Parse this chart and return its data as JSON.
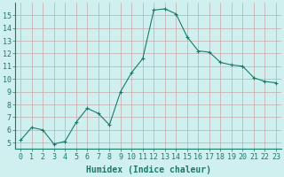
{
  "x": [
    0,
    1,
    2,
    3,
    4,
    5,
    6,
    7,
    8,
    9,
    10,
    11,
    12,
    13,
    14,
    15,
    16,
    17,
    18,
    19,
    20,
    21,
    22,
    23
  ],
  "y": [
    5.2,
    6.2,
    6.0,
    4.9,
    5.1,
    6.6,
    7.7,
    7.3,
    6.4,
    9.0,
    10.5,
    11.6,
    15.4,
    15.5,
    15.1,
    13.3,
    12.2,
    12.1,
    11.3,
    11.1,
    11.0,
    10.1,
    9.8,
    9.7
  ],
  "line_color": "#1a7a6a",
  "marker": "+",
  "marker_size": 3.5,
  "bg_color": "#d0f0f0",
  "grid_color_v": "#c8a8a8",
  "grid_color_h": "#c8a8a8",
  "xlabel": "Humidex (Indice chaleur)",
  "ylim": [
    4.5,
    16
  ],
  "xlim": [
    -0.5,
    23.5
  ],
  "yticks": [
    5,
    6,
    7,
    8,
    9,
    10,
    11,
    12,
    13,
    14,
    15
  ],
  "xticks": [
    0,
    1,
    2,
    3,
    4,
    5,
    6,
    7,
    8,
    9,
    10,
    11,
    12,
    13,
    14,
    15,
    16,
    17,
    18,
    19,
    20,
    21,
    22,
    23
  ],
  "xtick_labels": [
    "0",
    "1",
    "2",
    "3",
    "4",
    "5",
    "6",
    "7",
    "8",
    "9",
    "10",
    "11",
    "12",
    "13",
    "14",
    "15",
    "16",
    "17",
    "18",
    "19",
    "20",
    "21",
    "22",
    "23"
  ],
  "line_color_hex": "#1a7a6a",
  "tick_color": "#1a7a6a",
  "label_color": "#1a7a6a",
  "xlabel_fontsize": 7,
  "tick_fontsize": 6
}
